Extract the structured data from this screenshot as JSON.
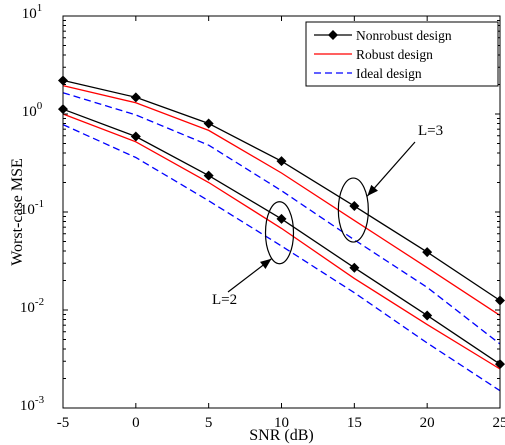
{
  "chart_data": {
    "type": "line",
    "title": "",
    "xlabel": "SNR (dB)",
    "ylabel": "Worst-case  MSE",
    "xlim": [
      -5,
      25
    ],
    "ylim": [
      0.001,
      10
    ],
    "yscale": "log",
    "grid": false,
    "legend_position": "top-right",
    "x": [
      -5,
      0,
      5,
      10,
      15,
      20,
      25
    ],
    "x_ticks": [
      "-5",
      "0",
      "5",
      "10",
      "15",
      "20",
      "25"
    ],
    "y_ticks": [
      {
        "base": "10",
        "exp": "-3",
        "value": 0.001
      },
      {
        "base": "10",
        "exp": "-2",
        "value": 0.01
      },
      {
        "base": "10",
        "exp": "-1",
        "value": 0.1
      },
      {
        "base": "10",
        "exp": "0",
        "value": 1
      },
      {
        "base": "10",
        "exp": "1",
        "value": 10
      }
    ],
    "legend": [
      {
        "label": "Nonrobust design",
        "color": "#000000",
        "dash": "solid",
        "marker": "diamond"
      },
      {
        "label": "Robust design",
        "color": "#ff0000",
        "dash": "solid",
        "marker": "none"
      },
      {
        "label": "Ideal design",
        "color": "#0000ff",
        "dash": "dashed",
        "marker": "none"
      }
    ],
    "series": [
      {
        "group": "L=3",
        "style": 0,
        "values": [
          2.2,
          1.48,
          0.8,
          0.33,
          0.115,
          0.039,
          0.0125
        ]
      },
      {
        "group": "L=3",
        "style": 1,
        "values": [
          1.95,
          1.3,
          0.68,
          0.25,
          0.082,
          0.027,
          0.0088
        ]
      },
      {
        "group": "L=3",
        "style": 2,
        "values": [
          1.65,
          0.98,
          0.48,
          0.165,
          0.052,
          0.017,
          0.0045
        ]
      },
      {
        "group": "L=2",
        "style": 0,
        "values": [
          1.12,
          0.59,
          0.235,
          0.085,
          0.027,
          0.0088,
          0.0028
        ]
      },
      {
        "group": "L=2",
        "style": 1,
        "values": [
          1.0,
          0.52,
          0.2,
          0.068,
          0.021,
          0.0071,
          0.0025
        ]
      },
      {
        "group": "L=2",
        "style": 2,
        "values": [
          0.78,
          0.36,
          0.13,
          0.045,
          0.015,
          0.0046,
          0.0015
        ]
      }
    ],
    "annotations": [
      {
        "text": "L=3",
        "target_x": 15,
        "target_y": 0.115
      },
      {
        "text": "L=2",
        "target_x": 10,
        "target_y": 0.06
      }
    ]
  }
}
